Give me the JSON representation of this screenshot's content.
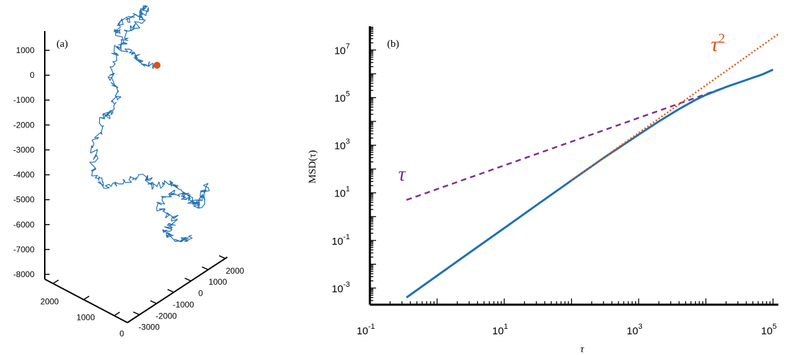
{
  "chart_data": [
    {
      "panel": "(a)",
      "type": "line3d",
      "z_ticks": [
        "1000",
        "0",
        "-1000",
        "-2000",
        "-3000",
        "-4000",
        "-5000",
        "-6000",
        "-7000",
        "-8000"
      ],
      "x_ticks": [
        "2000",
        "1000",
        "0"
      ],
      "y_ticks": [
        "2000",
        "1000",
        "0",
        "-1000",
        "-2000",
        "-3000"
      ],
      "zlim": [
        -8800,
        2300
      ],
      "trajectory_color": "#1f6fb5",
      "end_marker_color": "#d95319",
      "end_point": {
        "z": 400
      }
    },
    {
      "panel": "(b)",
      "type": "line",
      "log_x": true,
      "log_y": true,
      "xlim": [
        0.1,
        120000
      ],
      "ylim": [
        0.0002,
        100000000
      ],
      "x_ticks": [
        {
          "base": "10",
          "exp": "-1",
          "value": 0.1
        },
        {
          "base": "10",
          "exp": "1",
          "value": 10
        },
        {
          "base": "10",
          "exp": "3",
          "value": 1000
        },
        {
          "base": "10",
          "exp": "5",
          "value": 100000
        }
      ],
      "y_ticks": [
        {
          "base": "10",
          "exp": "-3",
          "value": 0.001
        },
        {
          "base": "10",
          "exp": "-1",
          "value": 0.1
        },
        {
          "base": "10",
          "exp": "1",
          "value": 10
        },
        {
          "base": "10",
          "exp": "3",
          "value": 1000
        },
        {
          "base": "10",
          "exp": "5",
          "value": 100000
        },
        {
          "base": "10",
          "exp": "7",
          "value": 10000000
        }
      ],
      "ylabel": "MSD(τ)",
      "xlabel": "τ",
      "series": [
        {
          "style": "solid",
          "color": "#1f6fb5",
          "points": [
            [
              0.35,
              0.0004
            ],
            [
              1,
              0.0033
            ],
            [
              3,
              0.03
            ],
            [
              10,
              0.33
            ],
            [
              30,
              3
            ],
            [
              100,
              33
            ],
            [
              300,
              290
            ],
            [
              1000,
              2800
            ],
            [
              2000,
              10000
            ],
            [
              4000,
              33000
            ],
            [
              7000,
              80000
            ],
            [
              10000,
              130000
            ],
            [
              20000,
              280000
            ],
            [
              40000,
              550000
            ],
            [
              70000,
              950000
            ],
            [
              100000,
              1500000
            ]
          ]
        },
        {
          "style": "dotted",
          "color": "#d95319",
          "points": [
            [
              100,
              33
            ],
            [
              120000,
              47000000
            ]
          ]
        },
        {
          "style": "dashed",
          "color": "#7e2f8e",
          "points": [
            [
              0.35,
              5
            ],
            [
              20000,
              280000
            ]
          ]
        }
      ],
      "annotations": [
        {
          "base": "τ",
          "sup": "2",
          "color": "#d95319",
          "near": "dotted-line-top"
        },
        {
          "base": "τ",
          "sup": "",
          "color": "#7e2f8e",
          "near": "dashed-line-left"
        }
      ]
    }
  ]
}
